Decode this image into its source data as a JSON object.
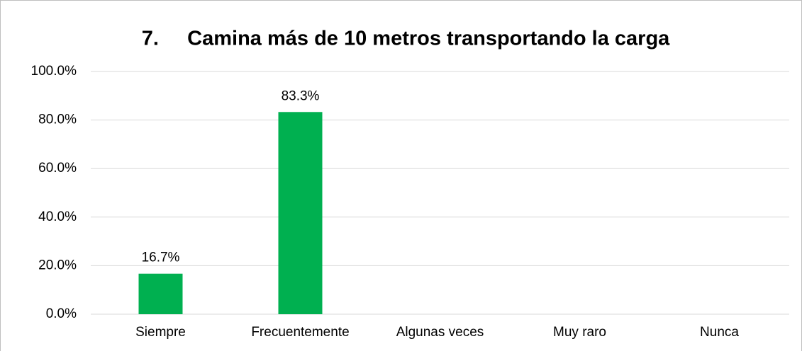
{
  "chart_data": {
    "type": "bar",
    "title": "7.     Camina más de 10 metros transportando la carga",
    "categories": [
      "Siempre",
      "Frecuentemente",
      "Algunas veces",
      "Muy raro",
      "Nunca"
    ],
    "values": [
      16.7,
      83.3,
      0,
      0,
      0
    ],
    "value_labels": [
      "16.7%",
      "83.3%",
      null,
      null,
      null
    ],
    "color": "#00b050",
    "ylim": [
      0,
      100
    ],
    "yticks": [
      {
        "value": 0,
        "label": "0.0%"
      },
      {
        "value": 20,
        "label": "20.0%"
      },
      {
        "value": 40,
        "label": "40.0%"
      },
      {
        "value": 60,
        "label": "60.0%"
      },
      {
        "value": 80,
        "label": "80.0%"
      },
      {
        "value": 100,
        "label": "100.0%"
      }
    ],
    "grid": true
  }
}
